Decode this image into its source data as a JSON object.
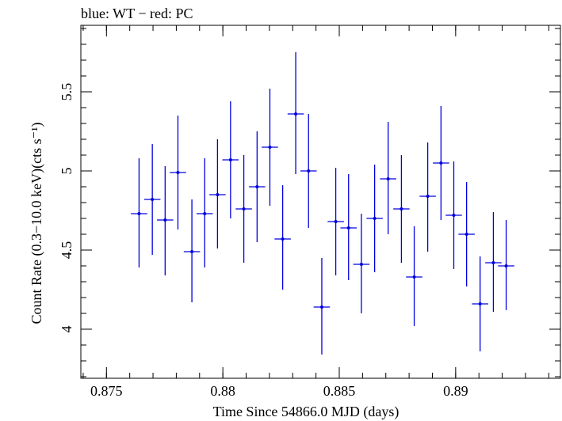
{
  "chart_data": {
    "type": "scatter",
    "title": "blue: WT − red: PC",
    "xlabel": "Time Since 54866.0 MJD (days)",
    "ylabel": "Count Rate (0.3−10.0 keV)(cts s⁻¹)",
    "xlim": [
      0.8739,
      0.8945
    ],
    "ylim": [
      3.69,
      5.92
    ],
    "x_major_ticks": [
      0.875,
      0.88,
      0.885,
      0.89
    ],
    "x_tick_labels": [
      "0.875",
      "0.88",
      "0.885",
      "0.89"
    ],
    "x_minor_step": 0.001,
    "y_major_ticks": [
      4,
      4.5,
      5,
      5.5
    ],
    "y_tick_labels": [
      "4",
      "4.5",
      "5",
      "5.5"
    ],
    "y_minor_step": 0.1,
    "grid": false,
    "series_color": "#0000e0",
    "series": [
      {
        "points": [
          {
            "x": 0.8764,
            "xerr": 0.00035,
            "y": 4.73,
            "ylo": 4.39,
            "yhi": 5.08
          },
          {
            "x": 0.87697,
            "xerr": 0.00035,
            "y": 4.82,
            "ylo": 4.47,
            "yhi": 5.17
          },
          {
            "x": 0.87752,
            "xerr": 0.00035,
            "y": 4.69,
            "ylo": 4.34,
            "yhi": 5.03
          },
          {
            "x": 0.87807,
            "xerr": 0.00035,
            "y": 4.99,
            "ylo": 4.63,
            "yhi": 5.35
          },
          {
            "x": 0.87867,
            "xerr": 0.00035,
            "y": 4.49,
            "ylo": 4.17,
            "yhi": 4.82
          },
          {
            "x": 0.87922,
            "xerr": 0.00035,
            "y": 4.73,
            "ylo": 4.39,
            "yhi": 5.08
          },
          {
            "x": 0.87977,
            "xerr": 0.00035,
            "y": 4.85,
            "ylo": 4.51,
            "yhi": 5.2
          },
          {
            "x": 0.88033,
            "xerr": 0.00035,
            "y": 5.07,
            "ylo": 4.7,
            "yhi": 5.44
          },
          {
            "x": 0.8809,
            "xerr": 0.00035,
            "y": 4.76,
            "ylo": 4.42,
            "yhi": 5.1
          },
          {
            "x": 0.88147,
            "xerr": 0.00035,
            "y": 4.9,
            "ylo": 4.55,
            "yhi": 5.25
          },
          {
            "x": 0.88202,
            "xerr": 0.00035,
            "y": 5.15,
            "ylo": 4.78,
            "yhi": 5.52
          },
          {
            "x": 0.88257,
            "xerr": 0.00035,
            "y": 4.57,
            "ylo": 4.25,
            "yhi": 4.91
          },
          {
            "x": 0.88313,
            "xerr": 0.00035,
            "y": 5.36,
            "ylo": 4.98,
            "yhi": 5.75
          },
          {
            "x": 0.88368,
            "xerr": 0.00035,
            "y": 5.0,
            "ylo": 4.64,
            "yhi": 5.36
          },
          {
            "x": 0.88425,
            "xerr": 0.00035,
            "y": 4.14,
            "ylo": 3.84,
            "yhi": 4.45
          },
          {
            "x": 0.88485,
            "xerr": 0.00035,
            "y": 4.68,
            "ylo": 4.34,
            "yhi": 5.02
          },
          {
            "x": 0.8854,
            "xerr": 0.00035,
            "y": 4.64,
            "ylo": 4.31,
            "yhi": 4.98
          },
          {
            "x": 0.88595,
            "xerr": 0.00035,
            "y": 4.41,
            "ylo": 4.1,
            "yhi": 4.73
          },
          {
            "x": 0.88652,
            "xerr": 0.00035,
            "y": 4.7,
            "ylo": 4.36,
            "yhi": 5.04
          },
          {
            "x": 0.8871,
            "xerr": 0.00035,
            "y": 4.95,
            "ylo": 4.6,
            "yhi": 5.31
          },
          {
            "x": 0.88767,
            "xerr": 0.00035,
            "y": 4.76,
            "ylo": 4.42,
            "yhi": 5.1
          },
          {
            "x": 0.88822,
            "xerr": 0.00035,
            "y": 4.33,
            "ylo": 4.02,
            "yhi": 4.65
          },
          {
            "x": 0.8888,
            "xerr": 0.00035,
            "y": 4.84,
            "ylo": 4.49,
            "yhi": 5.18
          },
          {
            "x": 0.88937,
            "xerr": 0.00035,
            "y": 5.05,
            "ylo": 4.69,
            "yhi": 5.41
          },
          {
            "x": 0.88992,
            "xerr": 0.00035,
            "y": 4.72,
            "ylo": 4.38,
            "yhi": 5.06
          },
          {
            "x": 0.89047,
            "xerr": 0.00035,
            "y": 4.6,
            "ylo": 4.27,
            "yhi": 4.93
          },
          {
            "x": 0.89105,
            "xerr": 0.00035,
            "y": 4.16,
            "ylo": 3.86,
            "yhi": 4.46
          },
          {
            "x": 0.89162,
            "xerr": 0.00035,
            "y": 4.42,
            "ylo": 4.11,
            "yhi": 4.74
          },
          {
            "x": 0.89217,
            "xerr": 0.00035,
            "y": 4.4,
            "ylo": 4.12,
            "yhi": 4.69
          }
        ]
      }
    ]
  }
}
